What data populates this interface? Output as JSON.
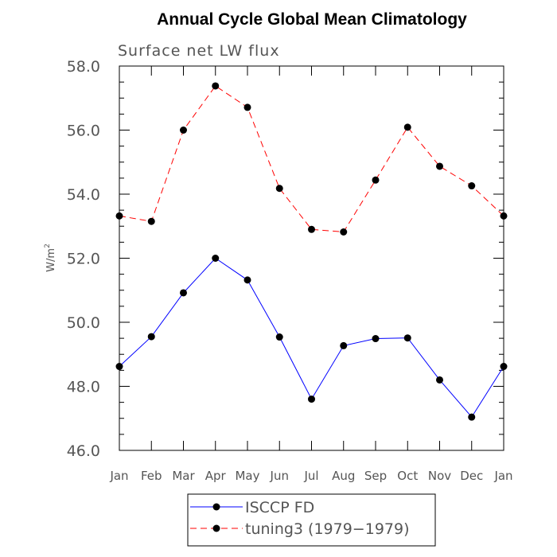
{
  "chart_data": {
    "type": "line",
    "title": "Annual Cycle Global Mean Climatology",
    "subtitle": "Surface net LW flux",
    "ylabel": "W/m",
    "ylabel_sup": "2",
    "xlabel": "",
    "ylim": [
      46.0,
      58.0
    ],
    "yticks": [
      "46.0",
      "48.0",
      "50.0",
      "52.0",
      "54.0",
      "56.0",
      "58.0"
    ],
    "categories": [
      "Jan",
      "Feb",
      "Mar",
      "Apr",
      "May",
      "Jun",
      "Jul",
      "Aug",
      "Sep",
      "Oct",
      "Nov",
      "Dec",
      "Jan"
    ],
    "series": [
      {
        "name": "ISCCP FD",
        "color": "#0000ff",
        "dash": "solid",
        "values": [
          48.62,
          49.55,
          50.92,
          52.0,
          51.32,
          49.54,
          47.6,
          49.27,
          49.49,
          49.51,
          48.2,
          47.04,
          48.62
        ]
      },
      {
        "name": "tuning3 (1979−1979)",
        "color": "#ff0000",
        "dash": "dashed",
        "values": [
          53.32,
          53.15,
          56.0,
          57.38,
          56.71,
          54.18,
          52.9,
          52.82,
          54.44,
          56.09,
          54.87,
          54.26,
          53.32
        ]
      }
    ],
    "marker": "filled-circle",
    "marker_color": "#000000",
    "legend_position": "bottom-center",
    "grid": false
  }
}
